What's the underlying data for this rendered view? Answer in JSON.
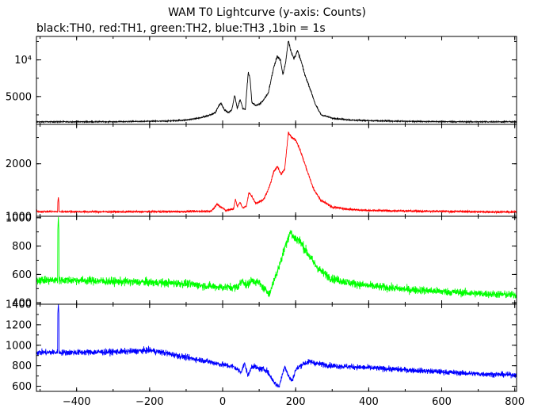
{
  "title": "WAM T0 Lightcurve (y-axis: Counts)",
  "subtitle": "black:TH0, red:TH1, green:TH2, blue:TH3 ,1bin = 1s",
  "chart_data": {
    "type": "line",
    "title": "WAM T0 Lightcurve (y-axis: Counts)",
    "subtitle": "black:TH0, red:TH1, green:TH2, blue:TH3 ,1bin = 1s",
    "xlim": [
      -510,
      805
    ],
    "x_ticks": [
      -400,
      -200,
      0,
      200,
      400,
      600,
      800
    ],
    "x_tick_labels": [
      "−400",
      "−200",
      "0",
      "200",
      "400",
      "600",
      "800"
    ],
    "grid": false,
    "panels": [
      {
        "name": "TH0",
        "color": "#000000",
        "ylim": [
          1200,
          13200
        ],
        "y_ticks": [
          5000,
          10000
        ],
        "y_tick_labels": [
          "5000",
          "10⁴"
        ],
        "noise": 70,
        "anchors": [
          [
            -510,
            1550
          ],
          [
            -300,
            1560
          ],
          [
            -150,
            1650
          ],
          [
            -100,
            1800
          ],
          [
            -60,
            2100
          ],
          [
            -40,
            2400
          ],
          [
            -20,
            2800
          ],
          [
            -10,
            3800
          ],
          [
            -5,
            4100
          ],
          [
            5,
            3200
          ],
          [
            15,
            2800
          ],
          [
            25,
            3200
          ],
          [
            33,
            5200
          ],
          [
            40,
            3400
          ],
          [
            48,
            4600
          ],
          [
            55,
            3400
          ],
          [
            62,
            3200
          ],
          [
            70,
            8300
          ],
          [
            75,
            7500
          ],
          [
            80,
            4200
          ],
          [
            90,
            3800
          ],
          [
            100,
            3900
          ],
          [
            110,
            4400
          ],
          [
            125,
            5500
          ],
          [
            140,
            9000
          ],
          [
            150,
            10500
          ],
          [
            158,
            10000
          ],
          [
            165,
            8000
          ],
          [
            172,
            9500
          ],
          [
            180,
            12700
          ],
          [
            188,
            11000
          ],
          [
            195,
            10200
          ],
          [
            205,
            11200
          ],
          [
            215,
            9800
          ],
          [
            225,
            8000
          ],
          [
            240,
            6000
          ],
          [
            255,
            3800
          ],
          [
            270,
            2500
          ],
          [
            300,
            2050
          ],
          [
            350,
            1800
          ],
          [
            400,
            1700
          ],
          [
            500,
            1620
          ],
          [
            600,
            1570
          ],
          [
            700,
            1550
          ],
          [
            805,
            1550
          ]
        ]
      },
      {
        "name": "TH1",
        "color": "#ff0000",
        "ylim": [
          1000,
          2750
        ],
        "y_ticks": [
          1000,
          2000
        ],
        "y_tick_labels": [
          "1000",
          "2000"
        ],
        "extra_tick_labels": [
          {
            "value": 1000,
            "label": "1000"
          }
        ],
        "noise": 18,
        "spikes": [
          [
            -450,
            1360
          ]
        ],
        "anchors": [
          [
            -510,
            1090
          ],
          [
            -300,
            1085
          ],
          [
            -100,
            1090
          ],
          [
            -30,
            1100
          ],
          [
            -15,
            1230
          ],
          [
            -5,
            1180
          ],
          [
            10,
            1110
          ],
          [
            30,
            1140
          ],
          [
            35,
            1330
          ],
          [
            40,
            1180
          ],
          [
            48,
            1270
          ],
          [
            55,
            1150
          ],
          [
            65,
            1200
          ],
          [
            72,
            1450
          ],
          [
            80,
            1380
          ],
          [
            90,
            1250
          ],
          [
            110,
            1300
          ],
          [
            125,
            1500
          ],
          [
            140,
            1850
          ],
          [
            150,
            1950
          ],
          [
            160,
            1800
          ],
          [
            170,
            1900
          ],
          [
            180,
            2600
          ],
          [
            190,
            2500
          ],
          [
            200,
            2450
          ],
          [
            210,
            2300
          ],
          [
            230,
            1900
          ],
          [
            250,
            1500
          ],
          [
            270,
            1300
          ],
          [
            300,
            1180
          ],
          [
            350,
            1130
          ],
          [
            400,
            1110
          ],
          [
            500,
            1100
          ],
          [
            600,
            1095
          ],
          [
            700,
            1085
          ],
          [
            805,
            1080
          ]
        ]
      },
      {
        "name": "TH2",
        "color": "#00ff00",
        "ylim": [
          390,
          1010
        ],
        "y_ticks": [
          400,
          600,
          800,
          1000
        ],
        "y_tick_labels": [
          "400",
          "600",
          "800",
          "1000"
        ],
        "noise": 28,
        "spikes": [
          [
            -450,
            1005
          ]
        ],
        "anchors": [
          [
            -510,
            560
          ],
          [
            -400,
            560
          ],
          [
            -300,
            550
          ],
          [
            -200,
            545
          ],
          [
            -100,
            535
          ],
          [
            -50,
            520
          ],
          [
            0,
            510
          ],
          [
            40,
            510
          ],
          [
            55,
            560
          ],
          [
            65,
            520
          ],
          [
            80,
            560
          ],
          [
            100,
            540
          ],
          [
            120,
            480
          ],
          [
            130,
            470
          ],
          [
            140,
            560
          ],
          [
            150,
            620
          ],
          [
            160,
            700
          ],
          [
            175,
            830
          ],
          [
            185,
            900
          ],
          [
            195,
            860
          ],
          [
            210,
            840
          ],
          [
            230,
            760
          ],
          [
            250,
            680
          ],
          [
            270,
            620
          ],
          [
            300,
            570
          ],
          [
            350,
            540
          ],
          [
            400,
            520
          ],
          [
            500,
            495
          ],
          [
            600,
            480
          ],
          [
            700,
            465
          ],
          [
            805,
            455
          ]
        ]
      },
      {
        "name": "TH3",
        "color": "#0000ff",
        "ylim": [
          550,
          1400
        ],
        "y_ticks": [
          600,
          800,
          1000,
          1200,
          1400
        ],
        "y_tick_labels": [
          "600",
          "800",
          "1000",
          "1200",
          "1400"
        ],
        "noise": 28,
        "spikes": [
          [
            -450,
            1400
          ]
        ],
        "anchors": [
          [
            -510,
            930
          ],
          [
            -400,
            930
          ],
          [
            -300,
            935
          ],
          [
            -250,
            940
          ],
          [
            -200,
            950
          ],
          [
            -150,
            920
          ],
          [
            -100,
            880
          ],
          [
            -50,
            850
          ],
          [
            0,
            810
          ],
          [
            30,
            790
          ],
          [
            50,
            740
          ],
          [
            60,
            820
          ],
          [
            70,
            700
          ],
          [
            80,
            800
          ],
          [
            100,
            770
          ],
          [
            120,
            760
          ],
          [
            130,
            700
          ],
          [
            145,
            620
          ],
          [
            155,
            600
          ],
          [
            170,
            800
          ],
          [
            180,
            700
          ],
          [
            190,
            650
          ],
          [
            200,
            760
          ],
          [
            220,
            820
          ],
          [
            240,
            840
          ],
          [
            260,
            820
          ],
          [
            300,
            800
          ],
          [
            400,
            780
          ],
          [
            500,
            760
          ],
          [
            600,
            740
          ],
          [
            700,
            720
          ],
          [
            805,
            710
          ]
        ]
      }
    ]
  }
}
